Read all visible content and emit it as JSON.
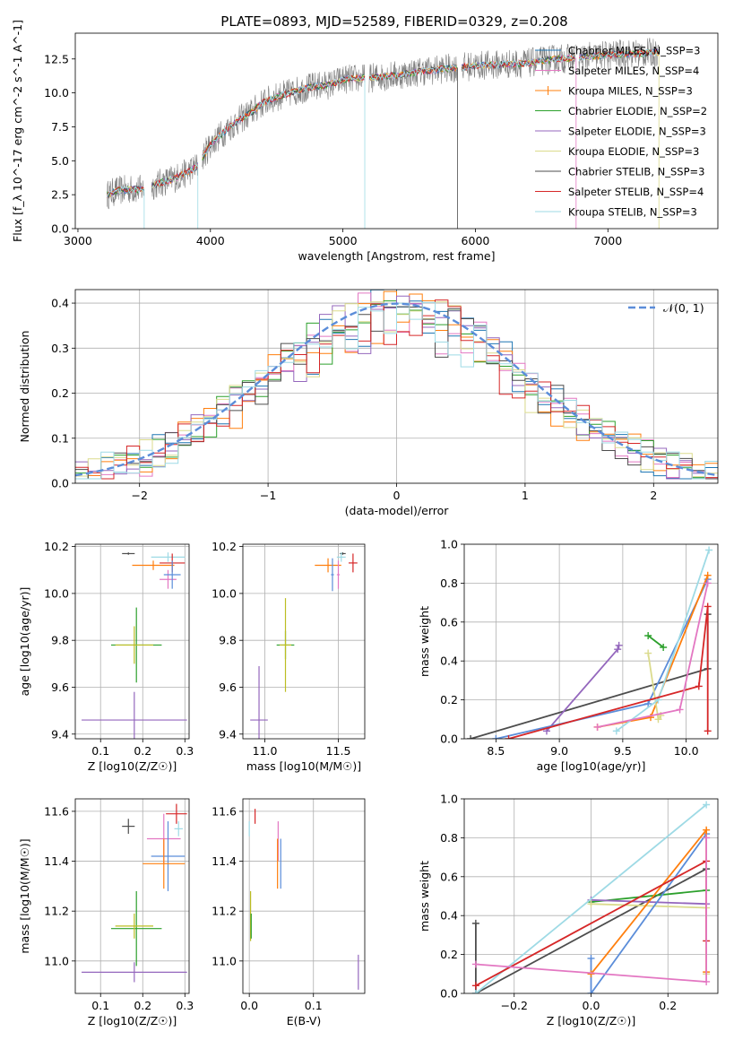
{
  "figure": {
    "suptitle": "PLATE=0893, MJD=52589, FIBERID=0329, z=0.208"
  },
  "chart_data": [
    {
      "id": "spectrum",
      "type": "line",
      "xlabel": "wavelength [Angstrom, rest frame]",
      "ylabel": "Flux [f_λ 10^-17 erg cm^-2 s^-1 A^-1]",
      "xlim": [
        2980,
        7830
      ],
      "ylim": [
        0,
        14.4
      ],
      "xticks": [
        3000,
        4000,
        5000,
        6000,
        7000
      ],
      "xticklabels": [
        "3000",
        "4000",
        "5000",
        "6000",
        "7000"
      ],
      "yticks": [
        0,
        2.5,
        5,
        7.5,
        10,
        12.5
      ],
      "yticklabels": [
        "0.0",
        "2.5",
        "5.0",
        "7.5",
        "10.0",
        "12.5"
      ],
      "grid": false,
      "legend_position": "right",
      "legend": [
        {
          "name": "Chabrier MILES, N_SSP=3",
          "color": "#1f77b4"
        },
        {
          "name": "Salpeter MILES, N_SSP=4",
          "color": "#e377c2"
        },
        {
          "name": "Kroupa MILES, N_SSP=3",
          "color": "#ff7f0e"
        },
        {
          "name": "Chabrier ELODIE, N_SSP=2",
          "color": "#2ca02c"
        },
        {
          "name": "Salpeter ELODIE, N_SSP=3",
          "color": "#9467bd"
        },
        {
          "name": "Kroupa ELODIE, N_SSP=3",
          "color": "#dbdb8d"
        },
        {
          "name": "Chabrier STELIB, N_SSP=3",
          "color": "#4d4d4d"
        },
        {
          "name": "Salpeter STELIB, N_SSP=4",
          "color": "#d62728"
        },
        {
          "name": "Kroupa STELIB, N_SSP=3",
          "color": "#9edae5"
        }
      ],
      "data_color": "#808080",
      "continuum": {
        "x": [
          3220,
          3300,
          3400,
          3500,
          3600,
          3700,
          3800,
          3900,
          4000,
          4100,
          4200,
          4300,
          4400,
          4500,
          4600,
          4700,
          4800,
          4900,
          5000,
          5200,
          5400,
          5600,
          5800,
          6000,
          6200,
          6400,
          6600,
          6800,
          7000,
          7200,
          7400
        ],
        "y": [
          2.5,
          2.8,
          2.9,
          2.9,
          3.3,
          3.6,
          4.0,
          4.6,
          6.2,
          7.1,
          7.9,
          8.5,
          9.3,
          9.7,
          10.0,
          10.3,
          10.5,
          10.6,
          11.0,
          11.1,
          11.3,
          11.6,
          11.8,
          12.0,
          12.1,
          12.2,
          12.5,
          12.6,
          12.8,
          12.9,
          13.0
        ]
      }
    },
    {
      "id": "residuals",
      "type": "line",
      "xlabel": "(data-model)/error",
      "ylabel": "Normed distribution",
      "xlim": [
        -2.5,
        2.5
      ],
      "ylim": [
        0,
        0.43
      ],
      "xticks": [
        -2,
        -1,
        0,
        1,
        2
      ],
      "xticklabels": [
        "−2",
        "−1",
        "0",
        "1",
        "2"
      ],
      "yticks": [
        0,
        0.1,
        0.2,
        0.3,
        0.4
      ],
      "yticklabels": [
        "0.0",
        "0.1",
        "0.2",
        "0.3",
        "0.4"
      ],
      "grid": true,
      "legend_position": "top-right",
      "gaussian": {
        "name": "𝒩(0, 1)",
        "color": "#5b8dd9"
      }
    },
    {
      "id": "age_vs_Z",
      "type": "scatter",
      "xlabel": "Z [log10(Z/Z☉)]",
      "ylabel": "age [log10(age/yr)]",
      "xlim": [
        0.04,
        0.31
      ],
      "ylim": [
        9.38,
        10.21
      ],
      "xticks": [
        0.1,
        0.2,
        0.3
      ],
      "xticklabels": [
        "0.1",
        "0.2",
        "0.3"
      ],
      "yticks": [
        9.4,
        9.6,
        9.8,
        10.0,
        10.2
      ],
      "yticklabels": [
        "9.4",
        "9.6",
        "9.8",
        "10.0",
        "10.2"
      ],
      "grid": true,
      "points": [
        {
          "color": "#4d4d4d",
          "x": 0.166,
          "y": 10.17,
          "xerr": 0.015,
          "yerr": 0.005
        },
        {
          "color": "#ff7f0e",
          "x": 0.225,
          "y": 10.12,
          "xerr": 0.05,
          "yerr": 0.02
        },
        {
          "color": "#9edae5",
          "x": 0.26,
          "y": 10.155,
          "xerr": 0.04,
          "yerr": 0.02
        },
        {
          "color": "#d62728",
          "x": 0.27,
          "y": 10.13,
          "xerr": 0.03,
          "yerr": 0.04
        },
        {
          "color": "#e377c2",
          "x": 0.26,
          "y": 10.06,
          "xerr": 0.02,
          "yerr": 0.04
        },
        {
          "color": "#5b8dd9",
          "x": 0.27,
          "y": 10.08,
          "xerr": 0.02,
          "yerr": 0.06
        },
        {
          "color": "#2ca02c",
          "x": 0.185,
          "y": 9.78,
          "xerr": 0.06,
          "yerr": 0.16
        },
        {
          "color": "#bcbd22",
          "x": 0.18,
          "y": 9.78,
          "xerr": 0.045,
          "yerr": 0.08
        },
        {
          "color": "#9467bd",
          "x": 0.18,
          "y": 9.46,
          "xerr": 0.125,
          "yerr": 0.12
        }
      ]
    },
    {
      "id": "age_vs_mass",
      "type": "scatter",
      "xlabel": "mass [log10(M/M☉)]",
      "ylabel": "",
      "xlim": [
        10.85,
        11.68
      ],
      "ylim": [
        9.38,
        10.21
      ],
      "xticks": [
        11.0,
        11.5
      ],
      "xticklabels": [
        "11.0",
        "11.5"
      ],
      "yticks": [
        9.4,
        9.6,
        9.8,
        10.0,
        10.2
      ],
      "yticklabels": [
        "9.4",
        "9.6",
        "9.8",
        "10.0",
        "10.2"
      ],
      "grid": true,
      "points": [
        {
          "color": "#4d4d4d",
          "x": 11.53,
          "y": 10.17,
          "xerr": 0.02,
          "yerr": 0.005
        },
        {
          "color": "#ff7f0e",
          "x": 11.43,
          "y": 10.12,
          "xerr": 0.09,
          "yerr": 0.03
        },
        {
          "color": "#9edae5",
          "x": 11.52,
          "y": 10.155,
          "xerr": 0.03,
          "yerr": 0.02
        },
        {
          "color": "#d62728",
          "x": 11.6,
          "y": 10.13,
          "xerr": 0.03,
          "yerr": 0.04
        },
        {
          "color": "#e377c2",
          "x": 11.5,
          "y": 10.08,
          "xerr": 0.01,
          "yerr": 0.06
        },
        {
          "color": "#5b8dd9",
          "x": 11.46,
          "y": 10.08,
          "xerr": 0.01,
          "yerr": 0.07
        },
        {
          "color": "#2ca02c",
          "x": 11.14,
          "y": 9.78,
          "xerr": 0.06,
          "yerr": 0.06
        },
        {
          "color": "#bcbd22",
          "x": 11.14,
          "y": 9.78,
          "xerr": 0.04,
          "yerr": 0.2
        },
        {
          "color": "#9467bd",
          "x": 10.96,
          "y": 9.46,
          "xerr": 0.06,
          "yerr": 0.23
        }
      ]
    },
    {
      "id": "mw_vs_age",
      "type": "line",
      "xlabel": "age [log10(age/yr)]",
      "ylabel": "mass weight",
      "xlim": [
        8.25,
        10.25
      ],
      "ylim": [
        0,
        1.0
      ],
      "xticks": [
        8.5,
        9.0,
        9.5,
        10.0
      ],
      "xticklabels": [
        "8.5",
        "9.0",
        "9.5",
        "10.0"
      ],
      "yticks": [
        0,
        0.2,
        0.4,
        0.6,
        0.8,
        1.0
      ],
      "yticklabels": [
        "0.0",
        "0.2",
        "0.4",
        "0.6",
        "0.8",
        "1.0"
      ],
      "grid": true,
      "series": [
        {
          "color": "#4d4d4d",
          "x": [
            8.3,
            10.17,
            10.17
          ],
          "y": [
            0.0,
            0.36,
            0.64
          ]
        },
        {
          "color": "#9467bd",
          "x": [
            8.9,
            9.46,
            9.47
          ],
          "y": [
            0.04,
            0.46,
            0.48
          ]
        },
        {
          "color": "#2ca02c",
          "x": [
            9.7,
            9.82
          ],
          "y": [
            0.53,
            0.47
          ]
        },
        {
          "color": "#5b8dd9",
          "x": [
            8.5,
            9.7,
            10.17
          ],
          "y": [
            0.0,
            0.18,
            0.82
          ]
        },
        {
          "color": "#ff7f0e",
          "x": [
            9.3,
            9.72,
            10.17
          ],
          "y": [
            0.06,
            0.11,
            0.84
          ]
        },
        {
          "color": "#dbdb8d",
          "x": [
            9.7,
            9.78,
            9.8
          ],
          "y": [
            0.44,
            0.1,
            0.12
          ]
        },
        {
          "color": "#9edae5",
          "x": [
            9.45,
            9.78,
            10.18
          ],
          "y": [
            0.04,
            0.2,
            0.97
          ]
        },
        {
          "color": "#d62728",
          "x": [
            8.6,
            10.1,
            10.17,
            10.17
          ],
          "y": [
            0.0,
            0.27,
            0.68,
            0.04
          ]
        },
        {
          "color": "#e377c2",
          "x": [
            9.3,
            9.95,
            10.17
          ],
          "y": [
            0.06,
            0.15,
            0.8
          ]
        }
      ]
    },
    {
      "id": "mass_vs_Z",
      "type": "scatter",
      "xlabel": "Z [log10(Z/Z☉)]",
      "ylabel": "mass [log10(M/M☉)]",
      "xlim": [
        0.04,
        0.31
      ],
      "ylim": [
        10.87,
        11.65
      ],
      "xticks": [
        0.1,
        0.2,
        0.3
      ],
      "xticklabels": [
        "0.1",
        "0.2",
        "0.3"
      ],
      "yticks": [
        11.0,
        11.2,
        11.4,
        11.6
      ],
      "yticklabels": [
        "11.0",
        "11.2",
        "11.4",
        "11.6"
      ],
      "grid": true,
      "points": [
        {
          "color": "#4d4d4d",
          "x": 0.166,
          "y": 11.54,
          "xerr": 0.015,
          "yerr": 0.03
        },
        {
          "color": "#d62728",
          "x": 0.28,
          "y": 11.59,
          "xerr": 0.025,
          "yerr": 0.04
        },
        {
          "color": "#9edae5",
          "x": 0.285,
          "y": 11.53,
          "xerr": 0.01,
          "yerr": 0.03
        },
        {
          "color": "#e377c2",
          "x": 0.25,
          "y": 11.49,
          "xerr": 0.04,
          "yerr": 0.1
        },
        {
          "color": "#5b8dd9",
          "x": 0.26,
          "y": 11.42,
          "xerr": 0.04,
          "yerr": 0.14
        },
        {
          "color": "#ff7f0e",
          "x": 0.25,
          "y": 11.39,
          "xerr": 0.05,
          "yerr": 0.1
        },
        {
          "color": "#2ca02c",
          "x": 0.185,
          "y": 11.13,
          "xerr": 0.06,
          "yerr": 0.15
        },
        {
          "color": "#bcbd22",
          "x": 0.18,
          "y": 11.14,
          "xerr": 0.045,
          "yerr": 0.05
        },
        {
          "color": "#9467bd",
          "x": 0.18,
          "y": 10.955,
          "xerr": 0.125,
          "yerr": 0.04
        }
      ]
    },
    {
      "id": "mass_vs_EBV",
      "type": "scatter",
      "xlabel": "E(B-V)",
      "ylabel": "",
      "xlim": [
        -0.01,
        0.18
      ],
      "ylim": [
        10.87,
        11.65
      ],
      "xticks": [
        0.0,
        0.1
      ],
      "xticklabels": [
        "0.0",
        "0.1"
      ],
      "yticks": [
        11.0,
        11.2,
        11.4,
        11.6
      ],
      "yticklabels": [
        "11.0",
        "11.2",
        "11.4",
        "11.6"
      ],
      "grid": true,
      "points": [
        {
          "color": "#9edae5",
          "x": 0.0,
          "y": 11.53,
          "xerr": 0.0,
          "yerr": 0.03
        },
        {
          "color": "#d62728",
          "x": 0.009,
          "y": 11.58,
          "xerr": 0.0,
          "yerr": 0.03
        },
        {
          "color": "#bcbd22",
          "x": 0.002,
          "y": 11.18,
          "xerr": 0.0,
          "yerr": 0.1
        },
        {
          "color": "#2ca02c",
          "x": 0.003,
          "y": 11.14,
          "xerr": 0.0,
          "yerr": 0.05
        },
        {
          "color": "#e377c2",
          "x": 0.045,
          "y": 11.48,
          "xerr": 0.0,
          "yerr": 0.08
        },
        {
          "color": "#ff7f0e",
          "x": 0.044,
          "y": 11.39,
          "xerr": 0.0,
          "yerr": 0.1
        },
        {
          "color": "#5b8dd9",
          "x": 0.049,
          "y": 11.39,
          "xerr": 0.0,
          "yerr": 0.1
        },
        {
          "color": "#9467bd",
          "x": 0.17,
          "y": 10.955,
          "xerr": 0.0,
          "yerr": 0.07
        }
      ]
    },
    {
      "id": "mw_vs_Z",
      "type": "line",
      "xlabel": "Z [log10(Z/Z☉)]",
      "ylabel": "mass weight",
      "xlim": [
        -0.33,
        0.33
      ],
      "ylim": [
        0,
        1.0
      ],
      "xticks": [
        -0.2,
        0.0,
        0.2
      ],
      "xticklabels": [
        "−0.2",
        "0.0",
        "0.2"
      ],
      "yticks": [
        0,
        0.2,
        0.4,
        0.6,
        0.8,
        1.0
      ],
      "yticklabels": [
        "0.0",
        "0.2",
        "0.4",
        "0.6",
        "0.8",
        "1.0"
      ],
      "grid": true,
      "series": [
        {
          "color": "#4d4d4d",
          "x": [
            -0.3,
            -0.3,
            0.3
          ],
          "y": [
            0.36,
            0.0,
            0.64
          ]
        },
        {
          "color": "#2ca02c",
          "x": [
            0.0,
            0.3
          ],
          "y": [
            0.47,
            0.53
          ]
        },
        {
          "color": "#9467bd",
          "x": [
            0.0,
            0.3
          ],
          "y": [
            0.48,
            0.46
          ]
        },
        {
          "color": "#dbdb8d",
          "x": [
            0.0,
            0.3,
            0.3
          ],
          "y": [
            0.46,
            0.44,
            0.1
          ]
        },
        {
          "color": "#9edae5",
          "x": [
            -0.3,
            0.3
          ],
          "y": [
            0.0,
            0.97
          ]
        },
        {
          "color": "#5b8dd9",
          "x": [
            0.0,
            0.0,
            0.3
          ],
          "y": [
            0.18,
            0.0,
            0.82
          ]
        },
        {
          "color": "#ff7f0e",
          "x": [
            0.0,
            0.3,
            0.3
          ],
          "y": [
            0.1,
            0.84,
            0.11
          ]
        },
        {
          "color": "#d62728",
          "x": [
            -0.3,
            0.3,
            0.3
          ],
          "y": [
            0.04,
            0.68,
            0.27
          ]
        },
        {
          "color": "#e377c2",
          "x": [
            -0.3,
            0.3,
            0.3
          ],
          "y": [
            0.15,
            0.06,
            0.8
          ]
        }
      ]
    }
  ]
}
